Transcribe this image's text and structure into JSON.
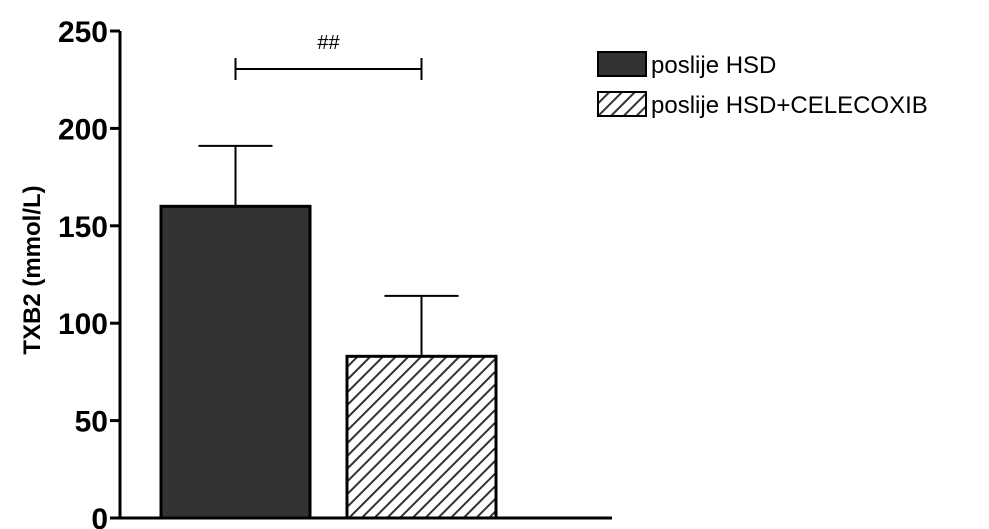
{
  "chart_data": {
    "type": "bar",
    "categories": [
      "poslije HSD",
      "poslije HSD+CELECOXIB"
    ],
    "series": [
      {
        "name": "poslije HSD",
        "value": 160,
        "error": 31,
        "fill": "solid",
        "color": "#333333"
      },
      {
        "name": "poslije HSD+CELECOXIB",
        "value": 83,
        "error": 31,
        "fill": "hatched",
        "color": "#333333"
      }
    ],
    "ylabel": "TXB2 (mmol/L)",
    "ylim": [
      0,
      250
    ],
    "yticks": [
      0,
      50,
      100,
      150,
      200,
      250
    ],
    "significance": {
      "label": "##",
      "between": [
        0,
        1
      ]
    },
    "legend_position": "top-right",
    "grid": false
  }
}
